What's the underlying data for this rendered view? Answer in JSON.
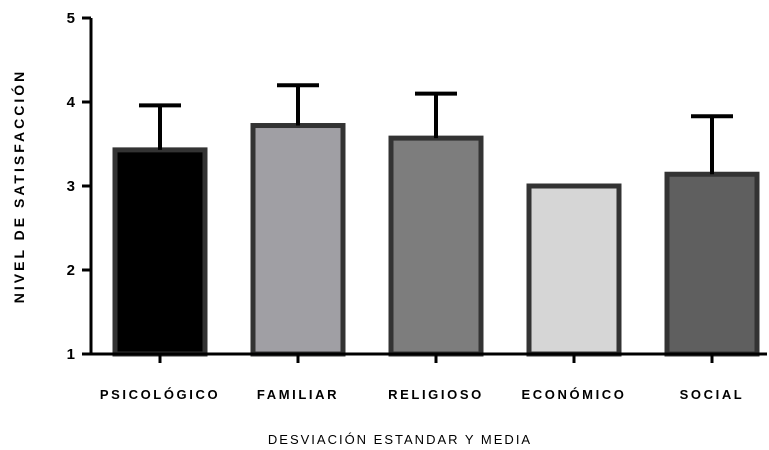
{
  "chart_data": {
    "type": "bar",
    "categories": [
      "PSICOLÓGICO",
      "FAMILIAR",
      "RELIGIOSO",
      "ECONÓMICO",
      "SOCIAL"
    ],
    "values": [
      3.43,
      3.72,
      3.57,
      3.0,
      3.14
    ],
    "error_upper": [
      0.53,
      0.48,
      0.53,
      0.0,
      0.69
    ],
    "bar_colors": [
      "#000000",
      "#a09fa4",
      "#7d7d7d",
      "#d6d6d6",
      "#5f5f5f"
    ],
    "bar_edge_color": "#333333",
    "xlabel": "DESVIACIÓN ESTANDAR Y MEDIA",
    "ylabel": "NIVEL DE SATISFACCIÓN",
    "ylim": [
      1,
      5
    ],
    "yticks": [
      1,
      2,
      3,
      4,
      5
    ],
    "grid": false
  }
}
